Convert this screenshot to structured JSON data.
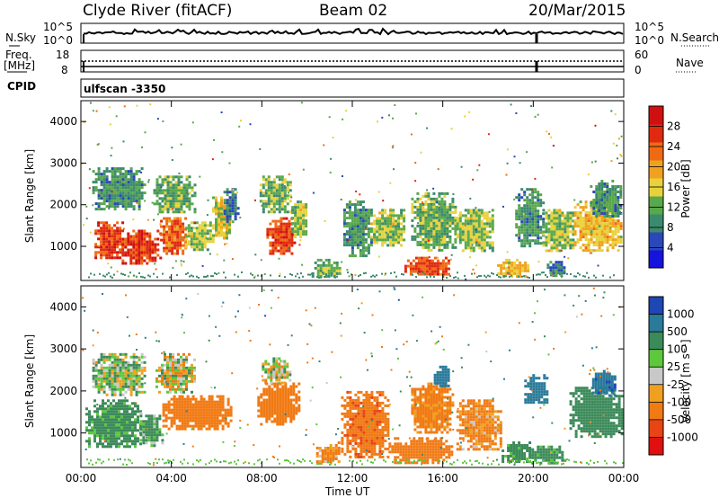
{
  "header": {
    "station": "Clyde River (fitACF)",
    "beam": "Beam 02",
    "date": "20/Mar/2015"
  },
  "top_panels": {
    "nsky_label": "N.Sky",
    "nsearch_label": "N.Search",
    "freq_label_1": "Freq.",
    "freq_label_2": "[MHz]",
    "nave_label": "Nave",
    "cpid_label": "CPID",
    "cpid_value": "ulfscan -3350",
    "count_ticks_left": [
      "10^5",
      "10^0"
    ],
    "count_ticks_right": [
      "10^5",
      "10^0"
    ],
    "freq_ticks": [
      "18",
      "8"
    ],
    "nave_ticks": [
      "60",
      "0"
    ]
  },
  "axes": {
    "x_label": "Time UT",
    "x_ticks": [
      "00:00",
      "04:00",
      "08:00",
      "12:00",
      "16:00",
      "20:00",
      "00:00"
    ],
    "y_label": "Slant Range [km]",
    "y_ticks": [
      "4000",
      "3000",
      "2000",
      "1000"
    ],
    "y_tick_values": [
      4000,
      3000,
      2000,
      1000
    ]
  },
  "power_scale": {
    "label": "Power [dB]",
    "ticks": [
      "28",
      "24",
      "20",
      "16",
      "12",
      "8",
      "4"
    ],
    "colors": [
      "#1414dc",
      "#2a48b8",
      "#3c8a6e",
      "#5aa84c",
      "#e8d23c",
      "#f0a21e",
      "#f06a14",
      "#e02a10",
      "#d01010"
    ]
  },
  "velocity_scale": {
    "label": "Velocity [m s⁻¹]",
    "ticks": [
      "1000",
      "500",
      "100",
      "25",
      "-25",
      "-100",
      "-500",
      "-1000"
    ],
    "colors": [
      "#1e46b4",
      "#2a7a9a",
      "#3c8a5a",
      "#5cc83c",
      "#c8c8c8",
      "#f0a020",
      "#f07a14",
      "#e84414",
      "#e01010"
    ]
  },
  "chart_data": [
    {
      "type": "heatmap",
      "title": "Power [dB]",
      "xlabel": "Time UT",
      "ylabel": "Slant Range [km]",
      "xlim": [
        "00:00",
        "24:00"
      ],
      "ylim": [
        180,
        4500
      ],
      "colorbar_ticks": [
        4,
        8,
        12,
        16,
        20,
        24,
        28
      ],
      "blobs": [
        {
          "t": [
            0.6,
            1.8
          ],
          "r": [
            700,
            1600
          ],
          "value": 26
        },
        {
          "t": [
            1.8,
            3.5
          ],
          "r": [
            600,
            1400
          ],
          "value": 27
        },
        {
          "t": [
            3.5,
            4.6
          ],
          "r": [
            800,
            1700
          ],
          "value": 24
        },
        {
          "t": [
            4.6,
            5.8
          ],
          "r": [
            900,
            1600
          ],
          "value": 14
        },
        {
          "t": [
            5.8,
            6.6
          ],
          "r": [
            1200,
            2200
          ],
          "value": 16
        },
        {
          "t": [
            0.5,
            2.8
          ],
          "r": [
            1900,
            2900
          ],
          "value": 10
        },
        {
          "t": [
            3.2,
            5.0
          ],
          "r": [
            1800,
            2700
          ],
          "value": 12
        },
        {
          "t": [
            6.3,
            6.9
          ],
          "r": [
            1600,
            2400
          ],
          "value": 8
        },
        {
          "t": [
            8.2,
            9.4
          ],
          "r": [
            800,
            1700
          ],
          "value": 26
        },
        {
          "t": [
            7.9,
            9.3
          ],
          "r": [
            1800,
            2700
          ],
          "value": 12
        },
        {
          "t": [
            9.3,
            10.0
          ],
          "r": [
            1200,
            2100
          ],
          "value": 14
        },
        {
          "t": [
            10.2,
            11.5
          ],
          "r": [
            250,
            700
          ],
          "value": 12
        },
        {
          "t": [
            11.6,
            12.8
          ],
          "r": [
            800,
            2100
          ],
          "value": 10
        },
        {
          "t": [
            12.8,
            14.3
          ],
          "r": [
            1000,
            1900
          ],
          "value": 14
        },
        {
          "t": [
            14.3,
            16.3
          ],
          "r": [
            300,
            750
          ],
          "value": 25
        },
        {
          "t": [
            14.6,
            16.6
          ],
          "r": [
            900,
            2300
          ],
          "value": 12
        },
        {
          "t": [
            16.6,
            18.2
          ],
          "r": [
            900,
            1900
          ],
          "value": 14
        },
        {
          "t": [
            18.4,
            19.8
          ],
          "r": [
            300,
            700
          ],
          "value": 18
        },
        {
          "t": [
            19.2,
            20.4
          ],
          "r": [
            1000,
            2400
          ],
          "value": 10
        },
        {
          "t": [
            20.6,
            21.4
          ],
          "r": [
            300,
            650
          ],
          "value": 8
        },
        {
          "t": [
            20.4,
            21.8
          ],
          "r": [
            900,
            1900
          ],
          "value": 14
        },
        {
          "t": [
            21.8,
            23.9
          ],
          "r": [
            900,
            2100
          ],
          "value": 18
        },
        {
          "t": [
            22.5,
            23.9
          ],
          "r": [
            1700,
            2600
          ],
          "value": 10
        }
      ]
    },
    {
      "type": "heatmap",
      "title": "Velocity [m s⁻¹]",
      "xlabel": "Time UT",
      "ylabel": "Slant Range [km]",
      "xlim": [
        "00:00",
        "24:00"
      ],
      "ylim": [
        180,
        4500
      ],
      "colorbar_ticks": [
        1000,
        500,
        100,
        25,
        -25,
        -100,
        -500,
        -1000
      ],
      "blobs": [
        {
          "t": [
            0.2,
            2.6
          ],
          "r": [
            700,
            1800
          ],
          "value": 200
        },
        {
          "t": [
            2.6,
            3.6
          ],
          "r": [
            700,
            1500
          ],
          "value": 150
        },
        {
          "t": [
            3.6,
            6.6
          ],
          "r": [
            1100,
            1900
          ],
          "value": -300
        },
        {
          "t": [
            0.5,
            2.8
          ],
          "r": [
            1900,
            2900
          ],
          "value": 50
        },
        {
          "t": [
            3.3,
            5.0
          ],
          "r": [
            2000,
            2900
          ],
          "value": 0
        },
        {
          "t": [
            7.8,
            9.6
          ],
          "r": [
            1200,
            2200
          ],
          "value": -300
        },
        {
          "t": [
            8.0,
            9.2
          ],
          "r": [
            2200,
            2800
          ],
          "value": 0
        },
        {
          "t": [
            10.4,
            11.4
          ],
          "r": [
            300,
            800
          ],
          "value": -150
        },
        {
          "t": [
            11.5,
            13.6
          ],
          "r": [
            400,
            2000
          ],
          "value": -400
        },
        {
          "t": [
            13.6,
            16.4
          ],
          "r": [
            300,
            900
          ],
          "value": -300
        },
        {
          "t": [
            14.6,
            16.4
          ],
          "r": [
            1000,
            2200
          ],
          "value": -200
        },
        {
          "t": [
            16.6,
            18.6
          ],
          "r": [
            600,
            1800
          ],
          "value": -150
        },
        {
          "t": [
            18.6,
            19.8
          ],
          "r": [
            300,
            800
          ],
          "value": 200
        },
        {
          "t": [
            19.8,
            21.4
          ],
          "r": [
            300,
            700
          ],
          "value": 200
        },
        {
          "t": [
            19.6,
            20.6
          ],
          "r": [
            1700,
            2400
          ],
          "value": 800
        },
        {
          "t": [
            21.6,
            23.9
          ],
          "r": [
            900,
            2100
          ],
          "value": 300
        },
        {
          "t": [
            22.6,
            23.6
          ],
          "r": [
            1900,
            2500
          ],
          "value": 900
        },
        {
          "t": [
            15.6,
            16.3
          ],
          "r": [
            2100,
            2600
          ],
          "value": 700
        }
      ]
    }
  ]
}
